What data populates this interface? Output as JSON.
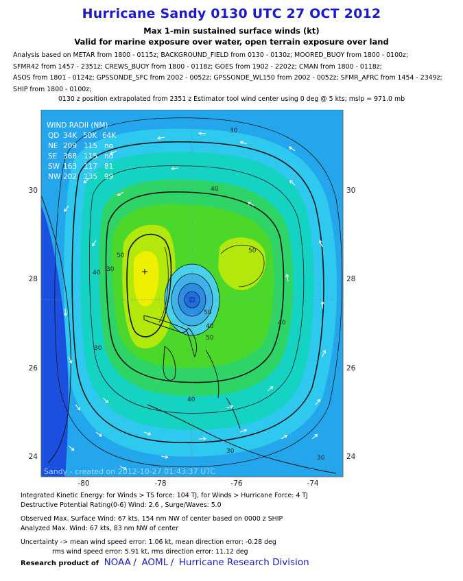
{
  "title": "Hurricane Sandy 0130 UTC 27 OCT 2012",
  "subtitle1": "Max 1-min sustained surface winds (kt)",
  "subtitle2": "Valid for marine exposure over water, open terrain exposure over land",
  "analysis_lines": [
    "Analysis based on METAR from 1800 - 0115z; BACKGROUND_FIELD from 0130 - 0130z; MOORED_BUOY from 1800 - 0100z;",
    "SFMR42 from 1457 - 2351z; CREWS_BUOY from 1800 - 0118z; GOES from 1902 - 2202z; CMAN from 1800 - 0118z;",
    "ASOS from 1801 - 0124z; GPSSONDE_SFC from 2002 - 0052z; GPSSONDE_WL150 from 2002 - 0052z; SFMR_AFRC from 1454 - 2349z;",
    "SHIP from 1800 - 0100z;"
  ],
  "position_note": "0130 z position extrapolated from 2351 z Estimator tool wind center using 0 deg @ 5 kts; mslp = 971.0 mb",
  "map": {
    "lon_range": [
      -81.0,
      -73.0
    ],
    "lat_range": [
      23.5,
      30.9
    ],
    "lon_ticks": [
      "-80",
      "-78",
      "-76",
      "-74"
    ],
    "lat_ticks": [
      "30",
      "28",
      "26",
      "24"
    ],
    "center": {
      "lon": -77.0,
      "lat": 27.55
    },
    "secondary_max": {
      "lon": -78.15,
      "lat": 28.15
    },
    "contour_labels": [
      "30",
      "40",
      "50",
      "50",
      "40",
      "40",
      "30",
      "30",
      "30",
      "40",
      "50",
      "50",
      "40",
      "30"
    ],
    "created_label": "Sandy - created on 2012-10-27 01:43:37 UTC",
    "colors": {
      "ocean": "#23a6ec",
      "land_west": "#1a4fe0",
      "cyan": "#2fc8ef",
      "teal": "#15d3c2",
      "green1": "#2fd466",
      "green2": "#4cd82a",
      "yellowgreen": "#b2e80c",
      "yellow": "#eef000"
    }
  },
  "wind_radii": {
    "title": "WIND RADII (NM)",
    "header": [
      "QD",
      "34K",
      "50K",
      "64K"
    ],
    "rows": [
      [
        "NE",
        "209",
        "115",
        "no"
      ],
      [
        "SE",
        "368",
        "115",
        "no"
      ],
      [
        "SW",
        "163",
        "117",
        "81"
      ],
      [
        "NW",
        "202",
        "135",
        "99"
      ]
    ]
  },
  "footer": {
    "line1": "Integrated Kinetic Energy: for Winds > TS force: 104 TJ, for Winds > Hurricane Force: 4 TJ",
    "line2": "Destructive Potential Rating(0-6)  Wind: 2.6 , Surge/Waves: 5.0",
    "line3": "Observed Max. Surface Wind: 67 kts, 154 nm NW of center based on 0000 z SHIP",
    "line4": "Analyzed Max. Wind: 67 kts, 83 nm  NW of center",
    "line5": "Uncertainty -> mean wind speed error: 1.06 kt, mean direction error:  -0.28 deg",
    "line6": "rms wind speed error: 5.91 kt, rms direction error: 11.12 deg"
  },
  "credit": {
    "label": "Research product of",
    "links": [
      "NOAA",
      "AOML",
      "Hurricane Research Division"
    ],
    "separator": "/"
  }
}
